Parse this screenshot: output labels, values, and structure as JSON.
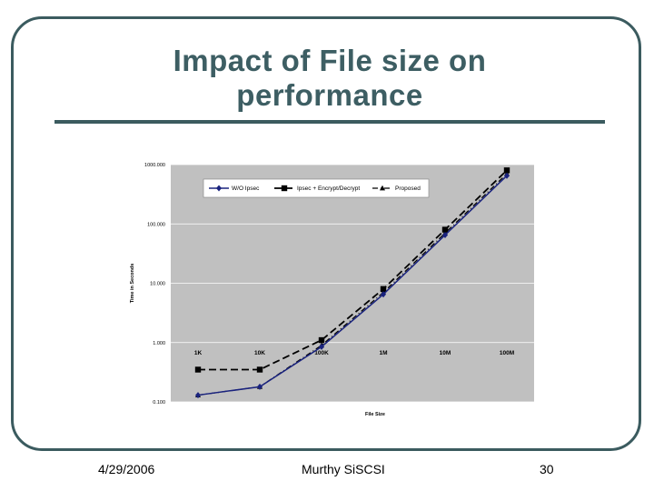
{
  "slide": {
    "title_line1": "Impact of File size on",
    "title_line2": "performance"
  },
  "footer": {
    "date": "4/29/2006",
    "author": "Murthy SiSCSI",
    "page": "30"
  },
  "colors": {
    "frame": "#3b5b5f",
    "title": "#3d5e63",
    "plot_bg": "#c0c0c0",
    "wo_ipsec": "#1a237e",
    "ipsec_encrypt": "#000000",
    "proposed": "#000000"
  },
  "chart_data": {
    "type": "line",
    "title": "",
    "xlabel": "File Size",
    "ylabel": "Time in Seconds",
    "yscale": "log",
    "ylim": [
      0.1,
      1000
    ],
    "yticks": [
      "0.100",
      "1.000",
      "10.000",
      "100.000",
      "1000.000"
    ],
    "categories": [
      "1K",
      "10K",
      "100K",
      "1M",
      "10M",
      "100M"
    ],
    "grid": "horizontal",
    "legend_position": "top",
    "series": [
      {
        "name": "W/O Ipsec",
        "marker": "diamond",
        "line": "solid",
        "values": [
          0.13,
          0.18,
          0.85,
          6.5,
          65,
          650
        ]
      },
      {
        "name": "Ipsec + Encrypt/Decrypt",
        "marker": "square",
        "line": "dashed",
        "values": [
          0.35,
          0.35,
          1.1,
          8.0,
          80,
          800
        ]
      },
      {
        "name": "Proposed",
        "marker": "triangle",
        "line": "dashdot",
        "values": [
          0.13,
          0.18,
          0.9,
          7.0,
          70,
          700
        ]
      }
    ]
  }
}
